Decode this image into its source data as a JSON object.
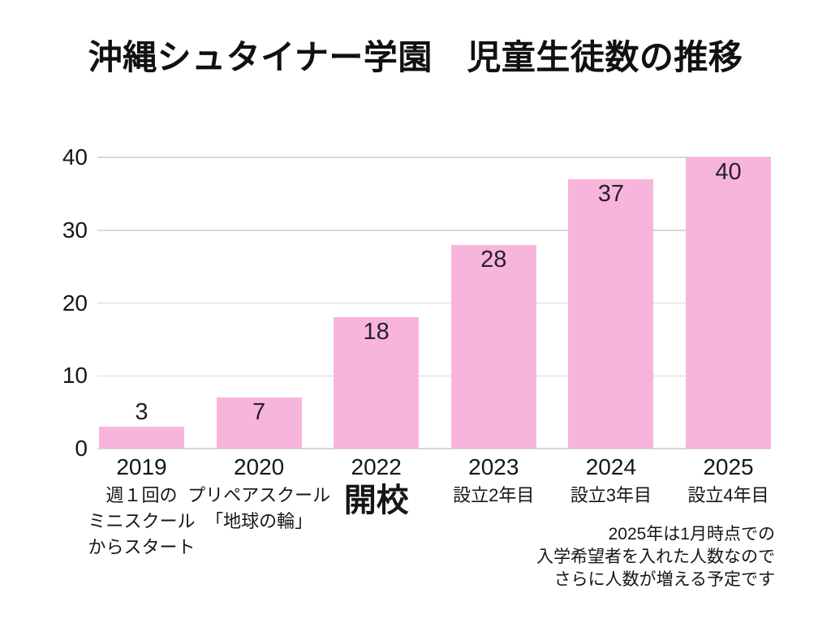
{
  "title": "沖縄シュタイナー学園　児童生徒数の推移",
  "colors": {
    "bar": "#f8b5dc",
    "gridline": "#d8d8d8",
    "text": "#161616",
    "background": "#ffffff"
  },
  "chart_data": {
    "type": "bar",
    "title": "沖縄シュタイナー学園　児童生徒数の推移",
    "categories": [
      "2019",
      "2020",
      "2022",
      "2023",
      "2024",
      "2025"
    ],
    "values": [
      3,
      7,
      18,
      28,
      37,
      40
    ],
    "ylim": [
      0,
      40
    ],
    "yticks": [
      0,
      10,
      20,
      30,
      40
    ],
    "grid": true,
    "legend": false,
    "bar_color": "#f8b5dc",
    "data_labels": [
      3,
      7,
      18,
      28,
      37,
      40
    ],
    "category_notes": [
      {
        "lines": [
          "週１回の",
          "ミニスクール",
          "からスタート"
        ],
        "emphasis": false
      },
      {
        "lines": [
          "プリペアスクール",
          "「地球の輪」"
        ],
        "emphasis": false
      },
      {
        "lines": [
          "開校"
        ],
        "emphasis": true
      },
      {
        "lines": [
          "設立2年目"
        ],
        "emphasis": false
      },
      {
        "lines": [
          "設立3年目"
        ],
        "emphasis": false
      },
      {
        "lines": [
          "設立4年目"
        ],
        "emphasis": false
      }
    ],
    "annotation": {
      "lines": [
        "2025年は1月時点での",
        "入学希望者を入れた人数なので",
        "さらに人数が増える予定です"
      ],
      "align": "right"
    }
  }
}
